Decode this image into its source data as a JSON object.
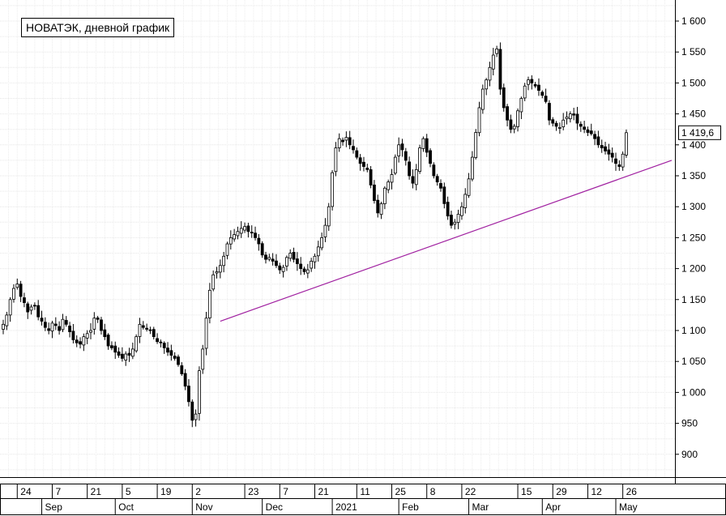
{
  "chart_data": {
    "type": "candlestick",
    "title": "НОВАТЭК, дневной график",
    "last_price_label": "1 419,6",
    "last_price": 1419.6,
    "ylim": [
      860,
      1620
    ],
    "y_ticks": [
      {
        "value": 900,
        "label": "900"
      },
      {
        "value": 950,
        "label": "950"
      },
      {
        "value": 1000,
        "label": "1 000"
      },
      {
        "value": 1050,
        "label": "1 050"
      },
      {
        "value": 1100,
        "label": "1 100"
      },
      {
        "value": 1150,
        "label": "1 150"
      },
      {
        "value": 1200,
        "label": "1 200"
      },
      {
        "value": 1250,
        "label": "1 250"
      },
      {
        "value": 1300,
        "label": "1 300"
      },
      {
        "value": 1350,
        "label": "1 350"
      },
      {
        "value": 1400,
        "label": "1 400"
      },
      {
        "value": 1450,
        "label": "1 450"
      },
      {
        "value": 1500,
        "label": "1 500"
      },
      {
        "value": 1550,
        "label": "1 550"
      },
      {
        "value": 1600,
        "label": "1 600"
      }
    ],
    "day_ticks": [
      {
        "label": "24",
        "day": 4
      },
      {
        "label": "7",
        "day": 14
      },
      {
        "label": "21",
        "day": 24
      },
      {
        "label": "5",
        "day": 34
      },
      {
        "label": "19",
        "day": 44
      },
      {
        "label": "2",
        "day": 54
      },
      {
        "label": "23",
        "day": 69
      },
      {
        "label": "7",
        "day": 79
      },
      {
        "label": "21",
        "day": 89
      },
      {
        "label": "11",
        "day": 101
      },
      {
        "label": "25",
        "day": 111
      },
      {
        "label": "8",
        "day": 121
      },
      {
        "label": "22",
        "day": 131
      },
      {
        "label": "15",
        "day": 147
      },
      {
        "label": "29",
        "day": 157
      },
      {
        "label": "12",
        "day": 167
      },
      {
        "label": "26",
        "day": 177
      }
    ],
    "month_ticks": [
      {
        "label": "Sep",
        "day": 11
      },
      {
        "label": "Oct",
        "day": 32
      },
      {
        "label": "Nov",
        "day": 54
      },
      {
        "label": "Dec",
        "day": 74
      },
      {
        "label": "2021",
        "day": 94
      },
      {
        "label": "Feb",
        "day": 113
      },
      {
        "label": "Mar",
        "day": 133
      },
      {
        "label": "Apr",
        "day": 154
      },
      {
        "label": "May",
        "day": 175
      }
    ],
    "close": [
      1110,
      1125,
      1150,
      1168,
      1175,
      1155,
      1145,
      1130,
      1138,
      1140,
      1122,
      1115,
      1105,
      1100,
      1112,
      1108,
      1100,
      1118,
      1110,
      1098,
      1085,
      1080,
      1078,
      1090,
      1095,
      1100,
      1120,
      1118,
      1100,
      1090,
      1075,
      1072,
      1065,
      1060,
      1055,
      1062,
      1060,
      1070,
      1090,
      1110,
      1105,
      1102,
      1100,
      1090,
      1082,
      1080,
      1072,
      1065,
      1060,
      1055,
      1045,
      1030,
      1010,
      985,
      955,
      965,
      1035,
      1070,
      1120,
      1165,
      1190,
      1195,
      1205,
      1220,
      1240,
      1250,
      1255,
      1260,
      1265,
      1268,
      1260,
      1258,
      1250,
      1240,
      1222,
      1215,
      1218,
      1212,
      1205,
      1198,
      1202,
      1218,
      1225,
      1215,
      1208,
      1200,
      1195,
      1198,
      1212,
      1220,
      1235,
      1250,
      1270,
      1300,
      1355,
      1395,
      1410,
      1405,
      1412,
      1400,
      1392,
      1380,
      1370,
      1365,
      1360,
      1335,
      1310,
      1290,
      1305,
      1330,
      1340,
      1352,
      1380,
      1400,
      1392,
      1375,
      1350,
      1338,
      1360,
      1395,
      1410,
      1388,
      1370,
      1350,
      1340,
      1330,
      1305,
      1285,
      1270,
      1275,
      1288,
      1300,
      1320,
      1345,
      1380,
      1420,
      1460,
      1490,
      1505,
      1525,
      1545,
      1555,
      1490,
      1460,
      1440,
      1425,
      1430,
      1455,
      1475,
      1495,
      1505,
      1500,
      1495,
      1488,
      1480,
      1470,
      1440,
      1435,
      1430,
      1428,
      1440,
      1445,
      1450,
      1448,
      1435,
      1430,
      1425,
      1420,
      1418,
      1410,
      1400,
      1395,
      1390,
      1385,
      1380,
      1370,
      1365,
      1385,
      1419.6
    ]
  }
}
